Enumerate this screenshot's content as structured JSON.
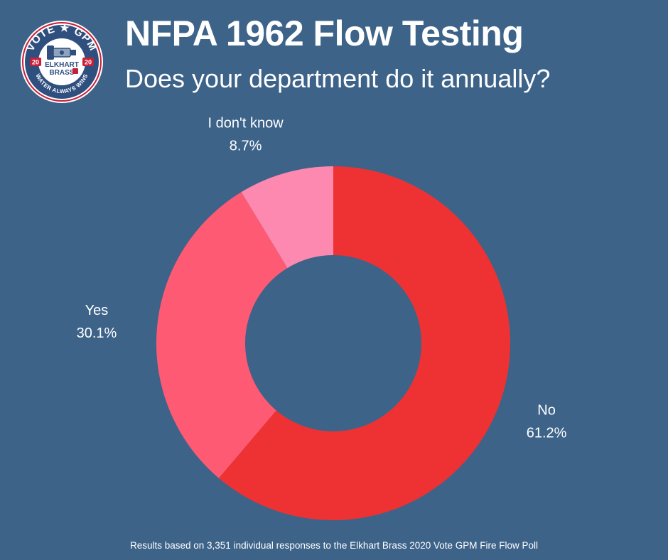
{
  "logo": {
    "top_text": "VOTE ★ GPM",
    "brand_line1": "ELKHART",
    "brand_line2": "BRASS",
    "year_left": "20",
    "year_right": "20",
    "bottom_text": "WATER ALWAYS WINS"
  },
  "colors": {
    "background": "#3d6389",
    "no": "#ee3233",
    "yes": "#fe5a73",
    "dont_know": "#fd89b0"
  },
  "chart_data": {
    "type": "pie",
    "variant": "donut",
    "title": "NFPA 1962 Flow Testing",
    "subtitle": "Does your department do it annually?",
    "slices": [
      {
        "label": "No",
        "value": 61.2,
        "value_label": "61.2%",
        "color": "#ee3233"
      },
      {
        "label": "Yes",
        "value": 30.1,
        "value_label": "30.1%",
        "color": "#fe5a73"
      },
      {
        "label": "I don't know",
        "value": 8.7,
        "value_label": "8.7%",
        "color": "#fd89b0"
      }
    ],
    "start": "top",
    "direction": "clockwise",
    "footnote": "Results based on 3,351 individual responses to the Elkhart Brass 2020 Vote GPM Fire Flow Poll"
  }
}
